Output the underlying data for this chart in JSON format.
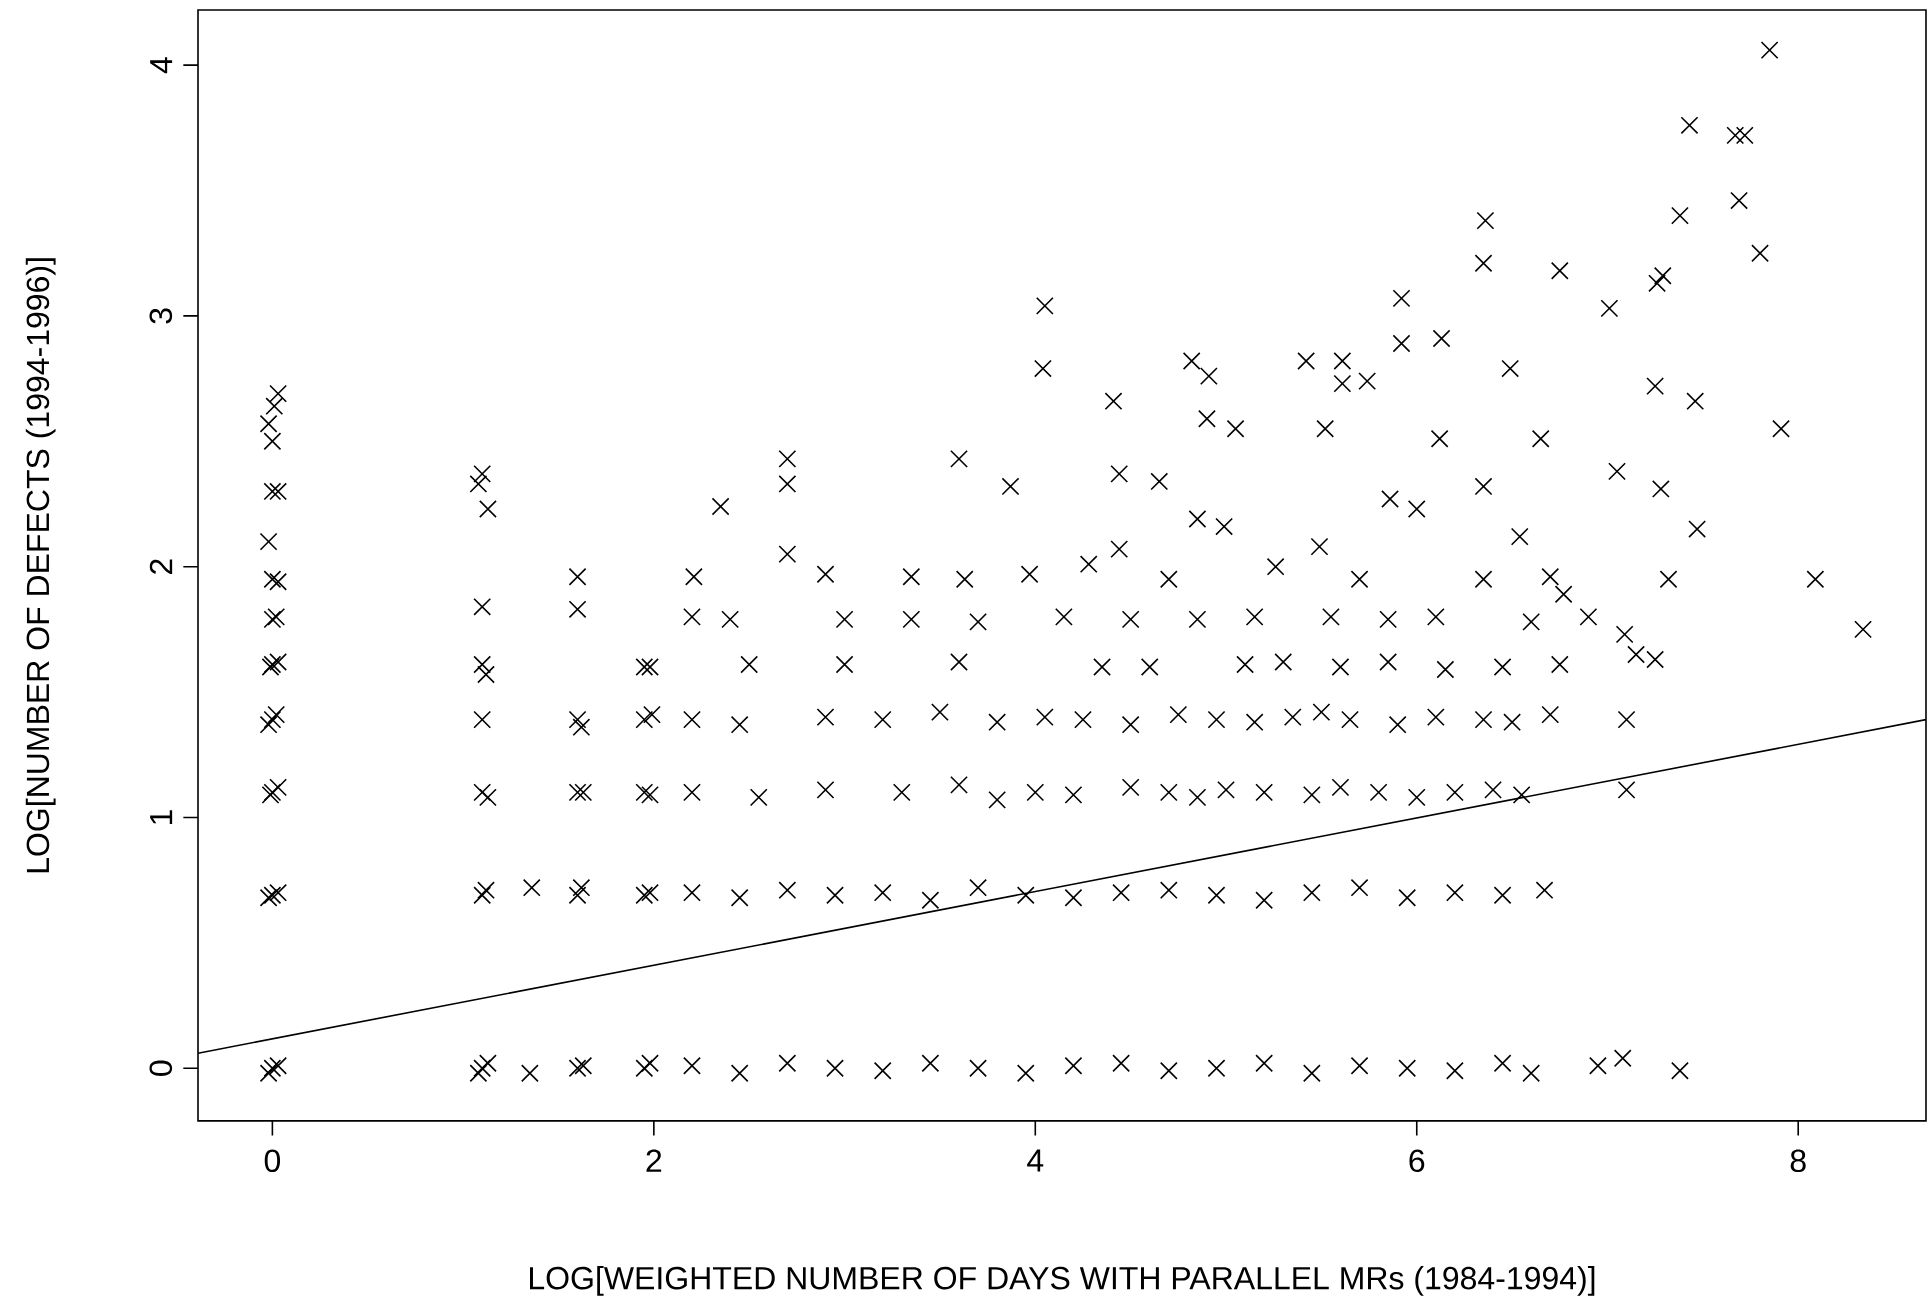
{
  "chart_data": {
    "type": "scatter",
    "xlabel": "LOG[WEIGHTED NUMBER OF DAYS WITH PARALLEL MRs (1984-1994)]",
    "ylabel": "LOG[NUMBER OF DEFECTS (1994-1996)]",
    "xlim": [
      -0.39,
      8.67
    ],
    "ylim": [
      -0.21,
      4.22
    ],
    "xticks": [
      0,
      2,
      4,
      6,
      8
    ],
    "yticks": [
      0,
      1,
      2,
      3,
      4
    ],
    "series": [
      {
        "color": "#000000",
        "marker": "cross",
        "x": [
          0,
          0.03,
          -0.02,
          0,
          0.03,
          -0.02,
          0,
          0.03,
          -0.01,
          0,
          0.02,
          -0.02,
          0,
          0.03,
          -0.01,
          0,
          0.02,
          0,
          0.03,
          -0.02,
          0,
          0.03,
          0,
          0.01,
          0.03,
          -0.02,
          1.1,
          1.13,
          1.08,
          1.1,
          1.12,
          1.1,
          1.13,
          1.1,
          1.1,
          1.12,
          1.1,
          1.1,
          1.13,
          1.08,
          1.36,
          1.35,
          1.6,
          1.63,
          1.6,
          1.62,
          1.6,
          1.63,
          1.6,
          1.62,
          1.6,
          1.6,
          1.95,
          1.98,
          1.95,
          1.98,
          1.95,
          1.98,
          1.95,
          1.99,
          1.95,
          1.98,
          2.2,
          2.45,
          2.7,
          2.95,
          3.2,
          3.45,
          3.7,
          3.95,
          4.2,
          4.45,
          4.7,
          4.95,
          5.2,
          5.45,
          5.7,
          5.95,
          6.2,
          6.45,
          6.6,
          2.2,
          2.45,
          2.7,
          2.95,
          3.2,
          3.45,
          3.7,
          3.95,
          4.2,
          4.45,
          4.7,
          4.95,
          5.2,
          5.45,
          5.7,
          5.95,
          6.2,
          6.45,
          6.67,
          2.2,
          2.55,
          2.9,
          3.3,
          3.6,
          3.8,
          4.0,
          4.2,
          4.5,
          4.7,
          4.85,
          5.0,
          5.2,
          5.45,
          5.6,
          5.8,
          6.0,
          6.2,
          6.4,
          6.55,
          7.1,
          2.2,
          2.45,
          2.9,
          3.2,
          3.5,
          3.8,
          4.05,
          4.25,
          4.5,
          4.75,
          4.95,
          5.15,
          5.35,
          5.5,
          5.65,
          5.9,
          6.1,
          6.35,
          6.5,
          6.7,
          7.1,
          2.5,
          3.0,
          3.6,
          4.35,
          4.6,
          5.1,
          5.3,
          5.6,
          5.85,
          6.15,
          6.45,
          6.75,
          7.15,
          7.25,
          2.2,
          2.4,
          3.0,
          3.35,
          3.7,
          4.15,
          4.5,
          4.85,
          5.15,
          5.55,
          5.85,
          6.1,
          6.6,
          6.9,
          7.09,
          2.21,
          2.9,
          3.35,
          3.63,
          3.97,
          4.28,
          4.7,
          5.26,
          5.7,
          6.35,
          6.7,
          7.32,
          8.09,
          8.34,
          2.35,
          2.7,
          2.7,
          2.7,
          3.6,
          3.87,
          4.44,
          4.44,
          4.65,
          4.85,
          4.99,
          5.49,
          5.86,
          6.0,
          6.35,
          6.54,
          6.77,
          7.05,
          7.28,
          7.47,
          4.05,
          4.04,
          4.41,
          4.82,
          4.9,
          4.91,
          5.05,
          5.42,
          5.52,
          5.61,
          5.74,
          5.61,
          5.92,
          5.92,
          6.13,
          6.12,
          6.36,
          6.35,
          6.49,
          6.65,
          6.75,
          7.01,
          7.25,
          7.26,
          7.29,
          7.38,
          7.43,
          7.46,
          7.67,
          7.72,
          7.69,
          7.8,
          7.85,
          7.91,
          6.95,
          7.08,
          7.38
        ],
        "values": [
          0,
          0.01,
          -0.02,
          0.69,
          0.7,
          0.68,
          1.1,
          1.12,
          1.09,
          1.39,
          1.41,
          1.37,
          1.61,
          1.62,
          1.6,
          1.79,
          1.8,
          1.95,
          1.94,
          2.1,
          2.3,
          2.3,
          2.5,
          2.64,
          2.69,
          2.57,
          0,
          0.02,
          -0.02,
          0.69,
          0.71,
          1.1,
          1.08,
          1.39,
          1.61,
          1.57,
          1.84,
          2.37,
          2.23,
          2.33,
          0.72,
          -0.02,
          0,
          0.01,
          0.69,
          0.72,
          1.1,
          1.1,
          1.39,
          1.36,
          1.83,
          1.96,
          0,
          0.02,
          0.69,
          0.7,
          1.1,
          1.09,
          1.39,
          1.41,
          1.6,
          1.6,
          0.01,
          -0.02,
          0.02,
          0,
          -0.01,
          0.02,
          0,
          -0.02,
          0.01,
          0.02,
          -0.01,
          0,
          0.02,
          -0.02,
          0.01,
          0,
          -0.01,
          0.02,
          -0.02,
          0.7,
          0.68,
          0.71,
          0.69,
          0.7,
          0.67,
          0.72,
          0.69,
          0.68,
          0.7,
          0.71,
          0.69,
          0.67,
          0.7,
          0.72,
          0.68,
          0.7,
          0.69,
          0.71,
          1.1,
          1.08,
          1.11,
          1.1,
          1.13,
          1.07,
          1.1,
          1.09,
          1.12,
          1.1,
          1.08,
          1.11,
          1.1,
          1.09,
          1.12,
          1.1,
          1.08,
          1.1,
          1.11,
          1.09,
          1.11,
          1.39,
          1.37,
          1.4,
          1.39,
          1.42,
          1.38,
          1.4,
          1.39,
          1.37,
          1.41,
          1.39,
          1.38,
          1.4,
          1.42,
          1.39,
          1.37,
          1.4,
          1.39,
          1.38,
          1.41,
          1.39,
          1.61,
          1.61,
          1.62,
          1.6,
          1.6,
          1.61,
          1.62,
          1.6,
          1.62,
          1.59,
          1.6,
          1.61,
          1.65,
          1.63,
          1.8,
          1.79,
          1.79,
          1.79,
          1.78,
          1.8,
          1.79,
          1.79,
          1.8,
          1.8,
          1.79,
          1.8,
          1.78,
          1.8,
          1.73,
          1.96,
          1.97,
          1.96,
          1.95,
          1.97,
          2.01,
          1.95,
          2.0,
          1.95,
          1.95,
          1.96,
          1.95,
          1.95,
          1.75,
          2.24,
          2.05,
          2.33,
          2.43,
          2.43,
          2.32,
          2.07,
          2.37,
          2.34,
          2.19,
          2.16,
          2.08,
          2.27,
          2.23,
          2.32,
          2.12,
          1.89,
          2.38,
          2.31,
          2.15,
          3.04,
          2.79,
          2.66,
          2.82,
          2.59,
          2.76,
          2.55,
          2.82,
          2.55,
          2.82,
          2.74,
          2.73,
          3.07,
          2.89,
          2.91,
          2.51,
          3.38,
          3.21,
          2.79,
          2.51,
          3.18,
          3.03,
          2.72,
          3.13,
          3.16,
          3.4,
          3.76,
          2.66,
          3.72,
          3.72,
          3.46,
          3.25,
          4.06,
          2.55,
          0.01,
          0.04,
          -0.01
        ]
      },
      {
        "type": "line",
        "color": "#000000",
        "x": [
          -0.39,
          8.67
        ],
        "values": [
          0.06,
          1.39
        ]
      }
    ]
  }
}
